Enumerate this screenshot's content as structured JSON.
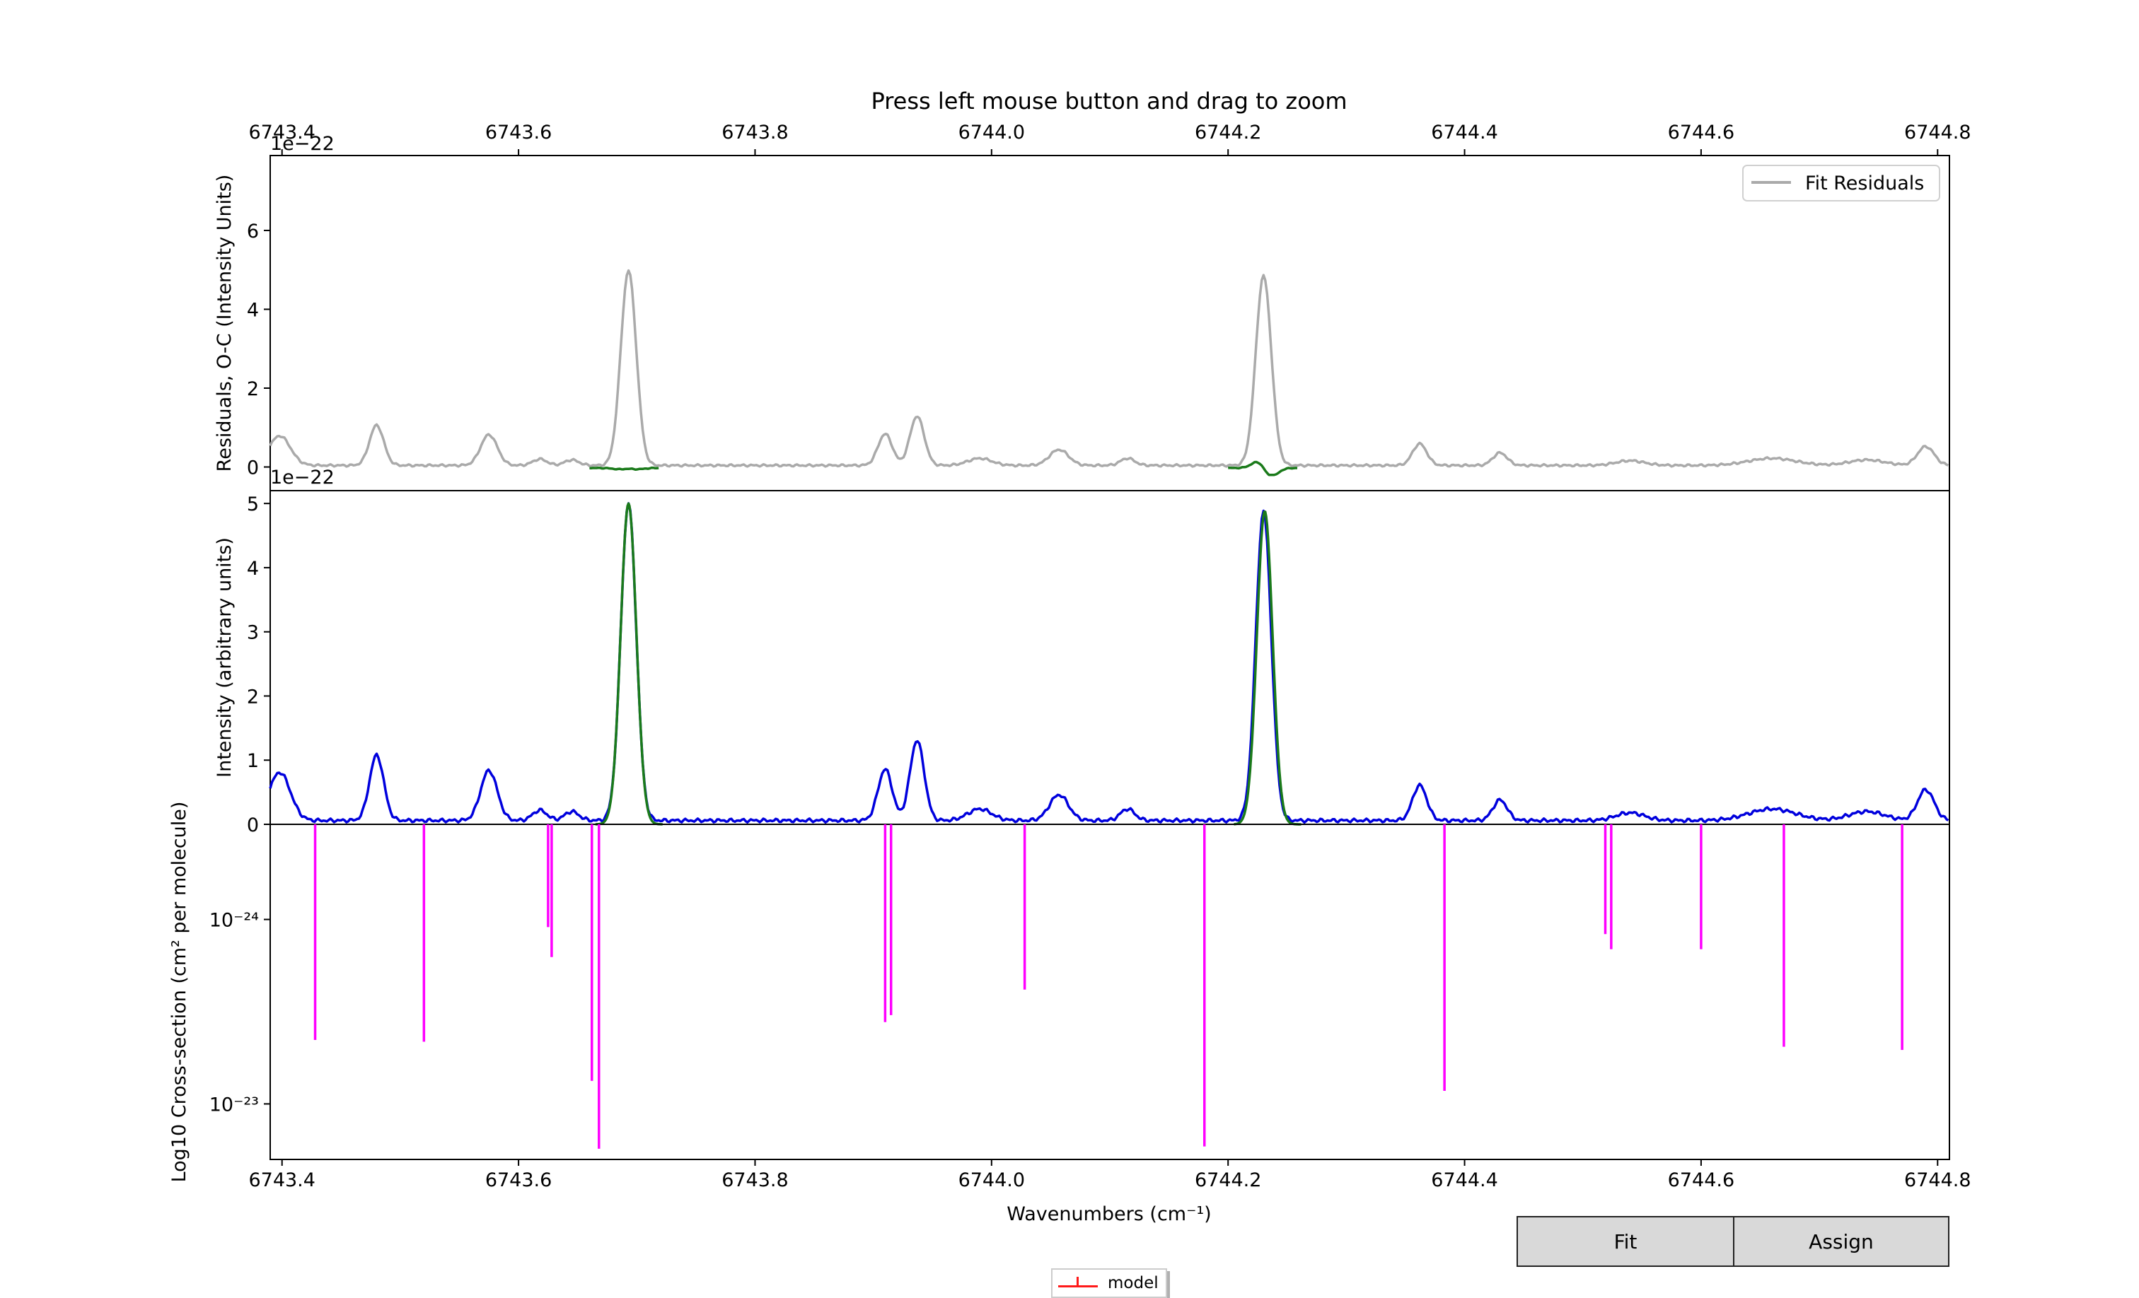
{
  "chart_data": {
    "type": "line",
    "title": "Press left mouse button and drag to zoom",
    "xlabel": "Wavenumbers (cm⁻¹)",
    "xlim": [
      6743.39,
      6744.81
    ],
    "x_ticks": [
      "6743.4",
      "6743.6",
      "6743.8",
      "6744.0",
      "6744.2",
      "6744.4",
      "6744.6",
      "6744.8"
    ],
    "panels": [
      {
        "id": "residuals",
        "ylabel": "Residuals, O-C (Intensity Units)",
        "scale_label": "1e−22",
        "ylim": [
          -0.6,
          7.9
        ],
        "y_ticks": [
          "0",
          "2",
          "4",
          "6"
        ],
        "y_tick_values": [
          0,
          2,
          4,
          6
        ],
        "legend": {
          "position": "top-right",
          "entries": [
            "Fit Residuals"
          ]
        },
        "series": [
          {
            "name": "Fit Residuals",
            "color": "#aaaaaa",
            "kind": "profile"
          },
          {
            "color": "#1a7a1a",
            "kind": "fit-residual-segments",
            "segments": [
              [
                6743.66,
                6743.72
              ],
              [
                6744.2,
                6744.26
              ]
            ]
          }
        ]
      },
      {
        "id": "intensity",
        "ylabel": "Intensity (arbitrary units)",
        "scale_label": "1e−22",
        "ylim": [
          0,
          5.2
        ],
        "y_ticks": [
          "0",
          "1",
          "2",
          "3",
          "4",
          "5"
        ],
        "y_tick_values": [
          0,
          1,
          2,
          3,
          4,
          5
        ],
        "series": [
          {
            "color": "#0000dd",
            "kind": "spectrum",
            "peaks": [
              {
                "x": 6743.398,
                "y": 0.75,
                "w": 0.009
              },
              {
                "x": 6743.48,
                "y": 1.02,
                "w": 0.006
              },
              {
                "x": 6743.575,
                "y": 0.78,
                "w": 0.007
              },
              {
                "x": 6743.618,
                "y": 0.16,
                "w": 0.006
              },
              {
                "x": 6743.645,
                "y": 0.14,
                "w": 0.006
              },
              {
                "x": 6743.693,
                "y": 4.95,
                "w": 0.0065
              },
              {
                "x": 6743.91,
                "y": 0.8,
                "w": 0.006
              },
              {
                "x": 6743.937,
                "y": 1.25,
                "w": 0.006
              },
              {
                "x": 6743.99,
                "y": 0.18,
                "w": 0.01
              },
              {
                "x": 6744.057,
                "y": 0.4,
                "w": 0.008
              },
              {
                "x": 6744.115,
                "y": 0.18,
                "w": 0.006
              },
              {
                "x": 6744.23,
                "y": 4.82,
                "w": 0.0065
              },
              {
                "x": 6744.362,
                "y": 0.55,
                "w": 0.006
              },
              {
                "x": 6744.43,
                "y": 0.32,
                "w": 0.006
              },
              {
                "x": 6744.54,
                "y": 0.12,
                "w": 0.012
              },
              {
                "x": 6744.66,
                "y": 0.18,
                "w": 0.02
              },
              {
                "x": 6744.74,
                "y": 0.14,
                "w": 0.015
              },
              {
                "x": 6744.79,
                "y": 0.48,
                "w": 0.007
              }
            ],
            "baseline": 0.06
          },
          {
            "color": "#1a7a1a",
            "kind": "fit",
            "peaks": [
              {
                "x": 6743.693,
                "y": 5.0,
                "w": 0.0066,
                "range": [
                  6743.665,
                  6743.722
                ]
              },
              {
                "x": 6744.231,
                "y": 4.88,
                "w": 0.0066,
                "range": [
                  6744.205,
                  6744.262
                ]
              }
            ]
          }
        ]
      },
      {
        "id": "cross-section",
        "ylabel": "Log10 Cross-section (cm² per molecule)",
        "scale": "log",
        "inverted": true,
        "ylim": [
          3.05e-25,
          2e-23
        ],
        "y_ticks": [
          "10⁻²⁴",
          "10⁻²³"
        ],
        "y_tick_values": [
          1e-24,
          1e-23
        ],
        "series": [
          {
            "name": "model",
            "color": "#ff00ff",
            "kind": "sticks",
            "sticks": [
              {
                "x": 6743.428,
                "y": 4.5e-24
              },
              {
                "x": 6743.52,
                "y": 4.6e-24
              },
              {
                "x": 6743.625,
                "y": 1.1e-24
              },
              {
                "x": 6743.628,
                "y": 1.6e-24
              },
              {
                "x": 6743.662,
                "y": 7.5e-24
              },
              {
                "x": 6743.668,
                "y": 1.75e-23
              },
              {
                "x": 6743.91,
                "y": 3.6e-24
              },
              {
                "x": 6743.915,
                "y": 3.3e-24
              },
              {
                "x": 6744.028,
                "y": 2.4e-24
              },
              {
                "x": 6744.18,
                "y": 1.7e-23
              },
              {
                "x": 6744.383,
                "y": 8.5e-24
              },
              {
                "x": 6744.519,
                "y": 1.2e-24
              },
              {
                "x": 6744.524,
                "y": 1.45e-24
              },
              {
                "x": 6744.6,
                "y": 1.45e-24
              },
              {
                "x": 6744.67,
                "y": 4.9e-24
              },
              {
                "x": 6744.77,
                "y": 5.1e-24
              }
            ]
          }
        ]
      }
    ]
  },
  "buttons": {
    "fit_label": "Fit",
    "assign_label": "Assign"
  },
  "model_legend": {
    "label": "model"
  }
}
